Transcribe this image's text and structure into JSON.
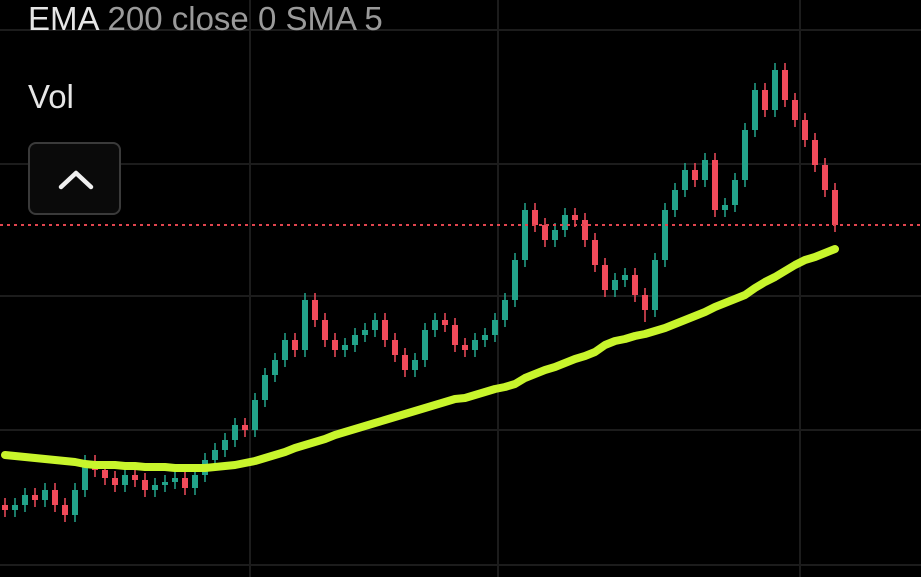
{
  "indicator": {
    "name": "EMA",
    "params": "200 close 0 SMA 5"
  },
  "volume_label": "Vol",
  "chart_data": {
    "type": "candlestick",
    "ylim": [
      0,
      577
    ],
    "up_color": "#22a38a",
    "down_color": "#f04a5a",
    "open": [
      72,
      67,
      72,
      82,
      77,
      87,
      72,
      62,
      87,
      115,
      107,
      99,
      92,
      102,
      97,
      87,
      92,
      95,
      99,
      89,
      102,
      117,
      127,
      137,
      152,
      147,
      177,
      202,
      217,
      237,
      227,
      277,
      257,
      237,
      227,
      232,
      242,
      247,
      257,
      237,
      222,
      207,
      217,
      247,
      257,
      252,
      232,
      227,
      237,
      242,
      257,
      277,
      317,
      367,
      352,
      337,
      347,
      362,
      357,
      337,
      312,
      287,
      297,
      302,
      282,
      267,
      317,
      367,
      387,
      407,
      397,
      417,
      367,
      372,
      397,
      447,
      487,
      467,
      507,
      477,
      457,
      437,
      412,
      387
    ],
    "high": [
      79,
      79,
      89,
      89,
      94,
      94,
      79,
      94,
      122,
      122,
      114,
      106,
      109,
      109,
      104,
      99,
      102,
      106,
      106,
      109,
      124,
      134,
      144,
      159,
      159,
      184,
      209,
      224,
      244,
      244,
      284,
      284,
      264,
      244,
      239,
      249,
      254,
      264,
      264,
      244,
      229,
      224,
      254,
      264,
      264,
      259,
      239,
      244,
      249,
      264,
      284,
      324,
      374,
      374,
      359,
      354,
      369,
      369,
      364,
      344,
      319,
      304,
      309,
      309,
      289,
      324,
      374,
      394,
      414,
      414,
      424,
      424,
      379,
      404,
      454,
      494,
      494,
      514,
      514,
      484,
      464,
      444,
      419,
      394
    ],
    "low": [
      60,
      60,
      65,
      70,
      70,
      65,
      55,
      55,
      80,
      100,
      92,
      85,
      85,
      90,
      80,
      80,
      85,
      88,
      82,
      82,
      95,
      110,
      120,
      130,
      140,
      140,
      170,
      195,
      210,
      220,
      220,
      250,
      230,
      220,
      220,
      225,
      235,
      240,
      230,
      215,
      200,
      200,
      210,
      240,
      245,
      225,
      220,
      220,
      230,
      235,
      250,
      270,
      310,
      345,
      330,
      330,
      340,
      350,
      330,
      305,
      280,
      280,
      290,
      275,
      255,
      260,
      310,
      360,
      380,
      390,
      390,
      360,
      360,
      365,
      390,
      440,
      460,
      460,
      470,
      450,
      430,
      405,
      380,
      345
    ],
    "close": [
      67,
      72,
      82,
      77,
      87,
      72,
      62,
      87,
      115,
      107,
      99,
      92,
      102,
      97,
      87,
      92,
      95,
      99,
      89,
      102,
      117,
      127,
      137,
      152,
      147,
      177,
      202,
      217,
      237,
      227,
      277,
      257,
      237,
      227,
      232,
      242,
      247,
      257,
      237,
      222,
      207,
      217,
      247,
      257,
      252,
      232,
      227,
      237,
      242,
      257,
      277,
      317,
      367,
      352,
      337,
      347,
      362,
      357,
      337,
      312,
      287,
      297,
      302,
      282,
      267,
      317,
      367,
      387,
      407,
      397,
      417,
      367,
      372,
      397,
      447,
      487,
      467,
      507,
      477,
      457,
      437,
      412,
      387,
      352
    ],
    "ema": {
      "color": "#c8f52c",
      "values": [
        122,
        121,
        120,
        119,
        118,
        117,
        116,
        115,
        113,
        112,
        112,
        112,
        111,
        111,
        110,
        110,
        110,
        109,
        109,
        109,
        109,
        110,
        111,
        112,
        114,
        116,
        119,
        122,
        125,
        129,
        132,
        135,
        138,
        142,
        145,
        148,
        151,
        154,
        157,
        160,
        163,
        166,
        169,
        172,
        175,
        178,
        179,
        182,
        185,
        188,
        190,
        193,
        199,
        203,
        207,
        210,
        214,
        218,
        221,
        225,
        232,
        236,
        238,
        241,
        243,
        246,
        249,
        253,
        257,
        261,
        265,
        270,
        274,
        278,
        282,
        289,
        295,
        300,
        306,
        312,
        317,
        320,
        324,
        328
      ]
    },
    "price_line_color": "#e0454f"
  }
}
